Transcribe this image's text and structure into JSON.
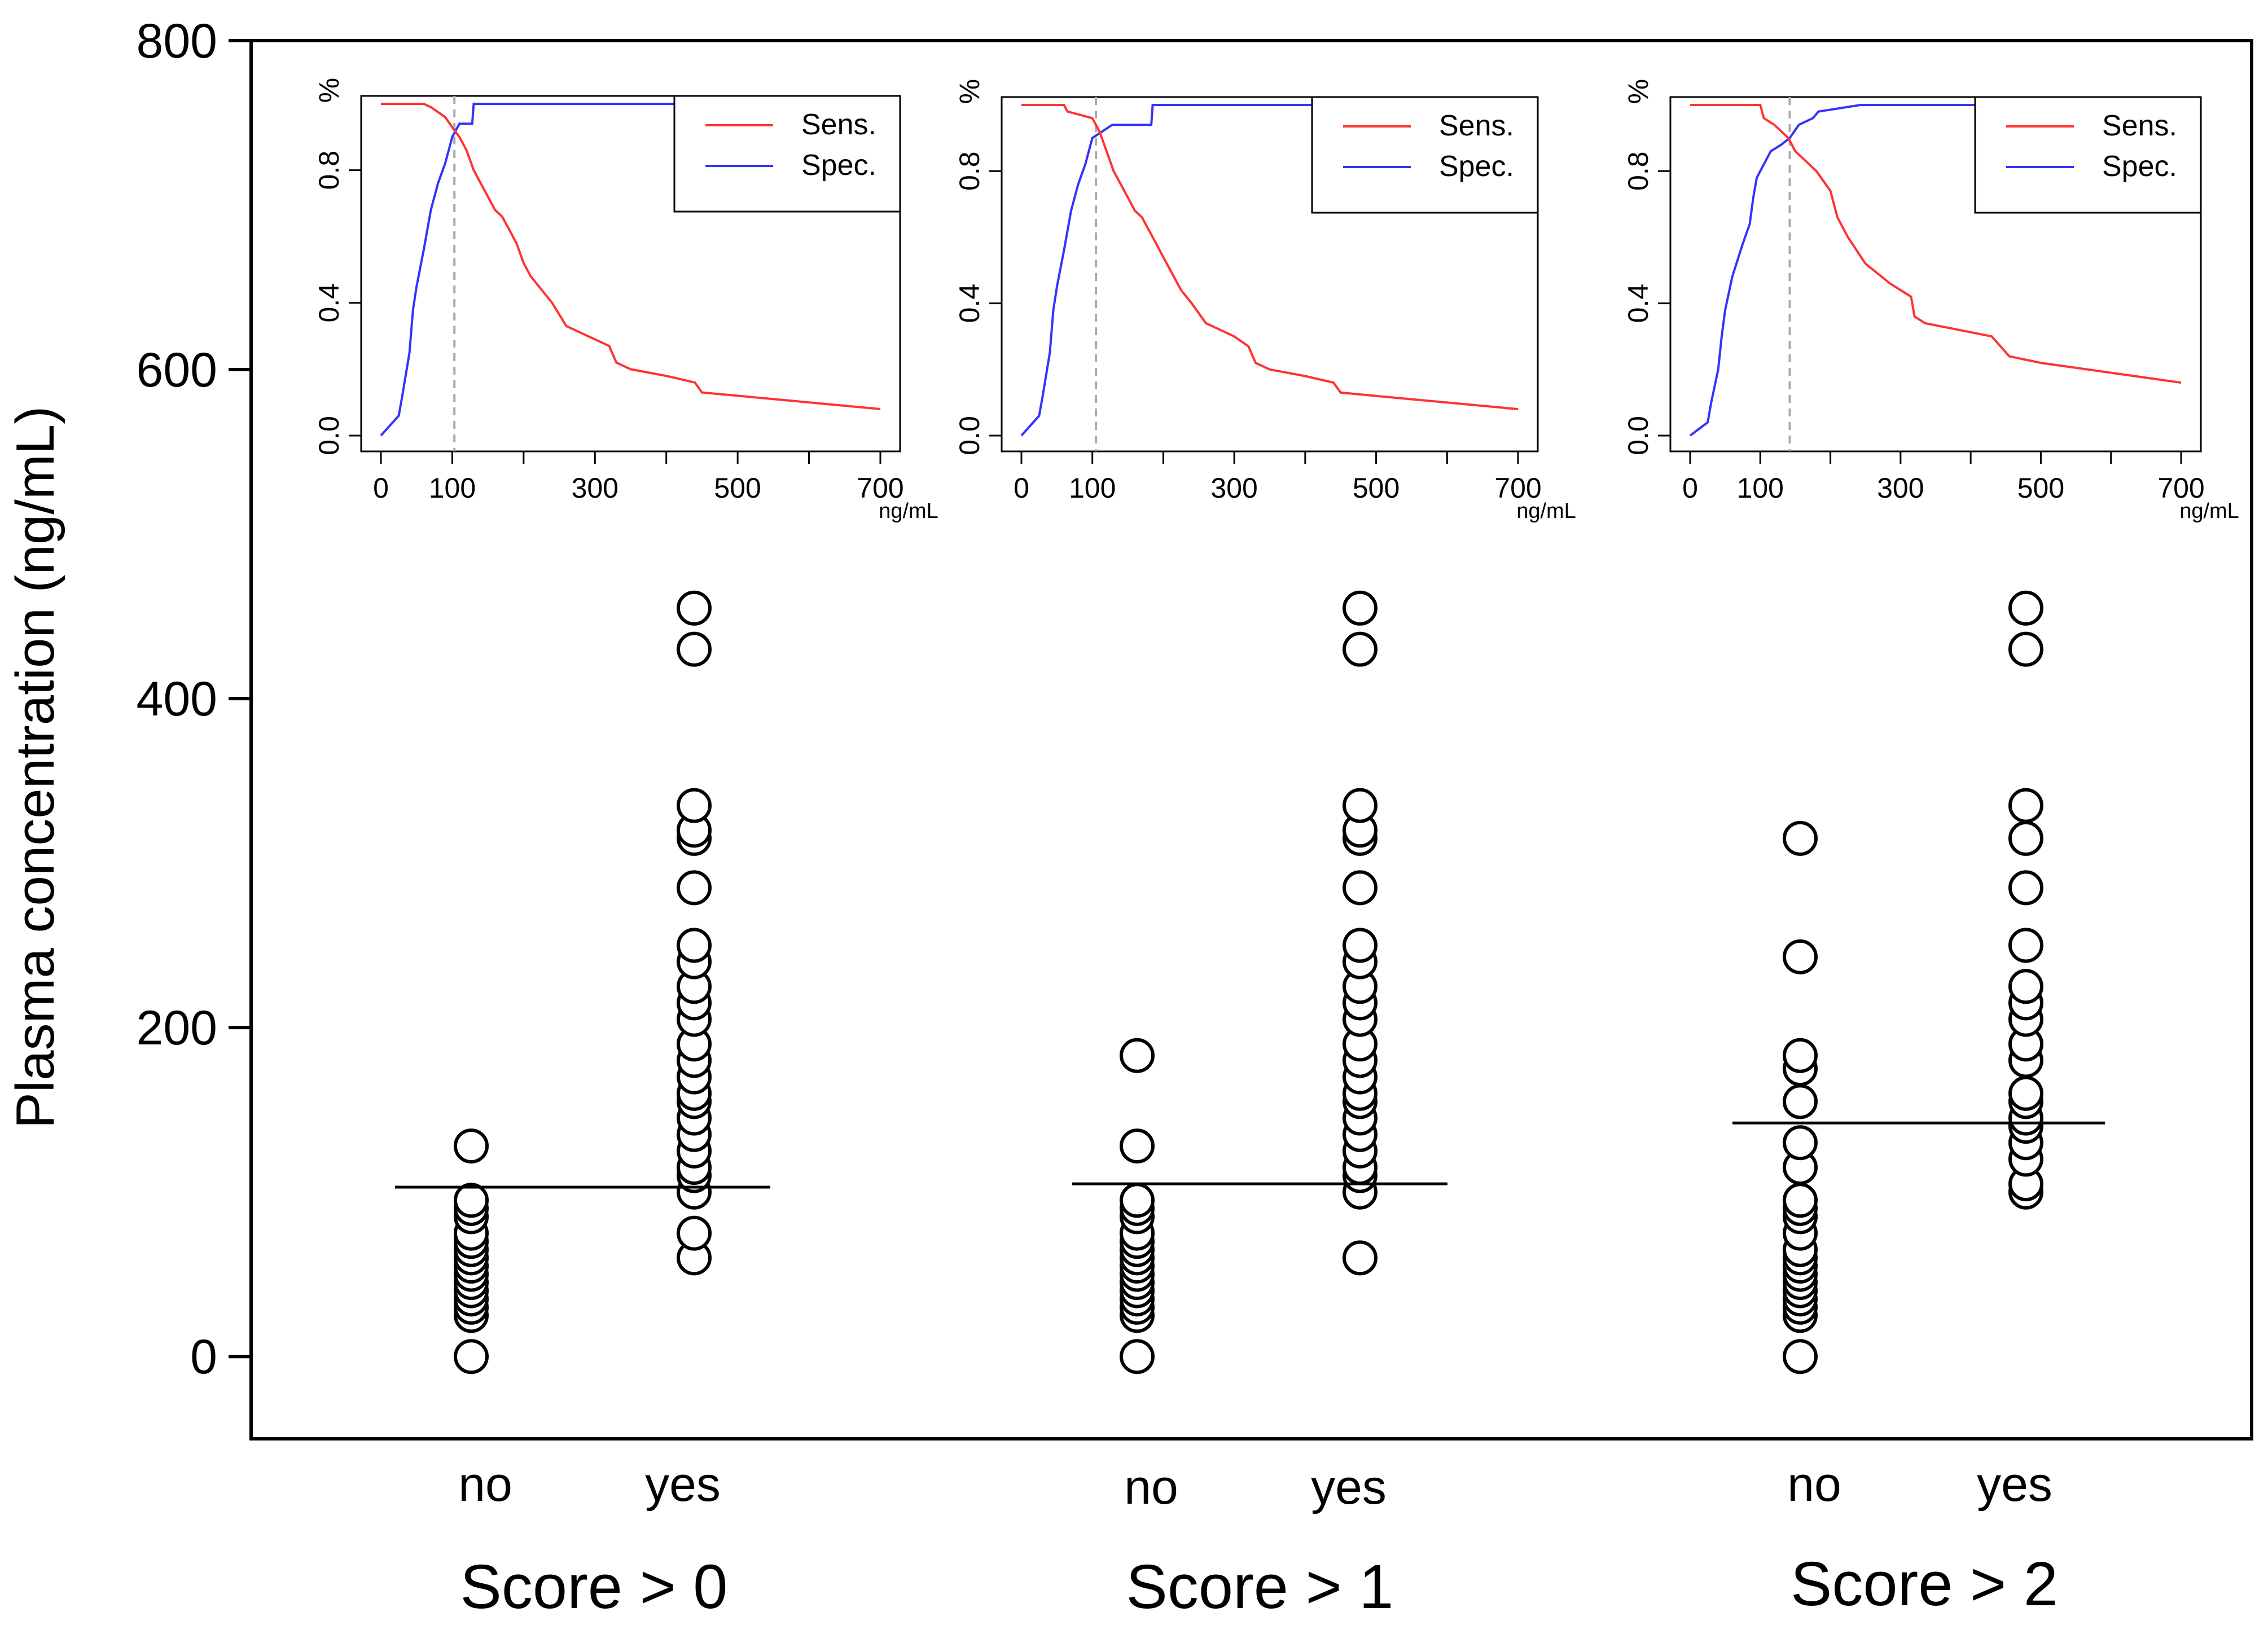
{
  "chart_data": {
    "type": "scatter",
    "ylabel": "Plasma concentration (ng/mL)",
    "ylim": [
      -50,
      800
    ],
    "yticks": [
      0,
      200,
      400,
      600,
      800
    ],
    "groups": [
      {
        "label": "Score > 0",
        "categories": [
          "no",
          "yes"
        ],
        "cutoff": 103,
        "no": [
          0,
          25,
          30,
          35,
          40,
          45,
          50,
          55,
          60,
          65,
          70,
          75,
          85,
          90,
          95,
          128
        ],
        "yes": [
          60,
          75,
          100,
          110,
          115,
          125,
          135,
          145,
          155,
          160,
          170,
          180,
          190,
          205,
          215,
          225,
          240,
          250,
          285,
          315,
          320,
          335,
          430,
          455
        ]
      },
      {
        "label": "Score > 1",
        "categories": [
          "no",
          "yes"
        ],
        "cutoff": 105,
        "no": [
          0,
          25,
          30,
          35,
          40,
          45,
          50,
          55,
          60,
          65,
          70,
          75,
          85,
          90,
          95,
          128,
          183
        ],
        "yes": [
          60,
          100,
          110,
          115,
          125,
          135,
          145,
          155,
          160,
          170,
          180,
          190,
          205,
          215,
          225,
          240,
          250,
          285,
          315,
          320,
          335,
          430,
          455
        ]
      },
      {
        "label": "Score > 2",
        "categories": [
          "no",
          "yes"
        ],
        "cutoff": 142,
        "no": [
          0,
          25,
          30,
          35,
          40,
          45,
          50,
          55,
          60,
          65,
          75,
          85,
          90,
          95,
          115,
          130,
          155,
          175,
          183,
          243,
          315
        ],
        "yes": [
          100,
          105,
          120,
          130,
          140,
          145,
          155,
          160,
          180,
          190,
          205,
          215,
          225,
          250,
          285,
          315,
          335,
          430,
          455
        ]
      }
    ],
    "insets": {
      "xlabel": "ng/mL",
      "ylabel": "%",
      "xlim": [
        0,
        700
      ],
      "xticks": [
        0,
        100,
        300,
        500,
        700
      ],
      "yticks": [
        0.0,
        0.4,
        0.8
      ],
      "ytick_labels": [
        "0.0",
        "0.4",
        "0.8"
      ],
      "xticks_minor": [
        200,
        400,
        600
      ],
      "legend": [
        "Sens.",
        "Spec."
      ],
      "colors": {
        "sens": "#ff3333",
        "spec": "#3333ff"
      },
      "panels": [
        {
          "cutoff": 103,
          "sens": [
            [
              0,
              1
            ],
            [
              60,
              1
            ],
            [
              70,
              0.99
            ],
            [
              90,
              0.96
            ],
            [
              103,
              0.92
            ],
            [
              110,
              0.9
            ],
            [
              120,
              0.86
            ],
            [
              130,
              0.8
            ],
            [
              140,
              0.76
            ],
            [
              150,
              0.72
            ],
            [
              160,
              0.68
            ],
            [
              170,
              0.66
            ],
            [
              180,
              0.62
            ],
            [
              190,
              0.58
            ],
            [
              200,
              0.52
            ],
            [
              210,
              0.48
            ],
            [
              225,
              0.44
            ],
            [
              240,
              0.4
            ],
            [
              260,
              0.33
            ],
            [
              290,
              0.3
            ],
            [
              320,
              0.27
            ],
            [
              330,
              0.22
            ],
            [
              350,
              0.2
            ],
            [
              400,
              0.18
            ],
            [
              440,
              0.16
            ],
            [
              450,
              0.13
            ],
            [
              500,
              0.12
            ],
            [
              700,
              0.08
            ]
          ],
          "spec": [
            [
              0,
              0
            ],
            [
              25,
              0.06
            ],
            [
              30,
              0.12
            ],
            [
              40,
              0.25
            ],
            [
              45,
              0.38
            ],
            [
              50,
              0.45
            ],
            [
              60,
              0.56
            ],
            [
              70,
              0.68
            ],
            [
              80,
              0.76
            ],
            [
              90,
              0.82
            ],
            [
              100,
              0.9
            ],
            [
              110,
              0.94
            ],
            [
              128,
              0.94
            ],
            [
              130,
              1
            ],
            [
              700,
              1
            ]
          ]
        },
        {
          "cutoff": 105,
          "sens": [
            [
              0,
              1
            ],
            [
              60,
              1
            ],
            [
              65,
              0.98
            ],
            [
              100,
              0.96
            ],
            [
              110,
              0.92
            ],
            [
              120,
              0.86
            ],
            [
              130,
              0.8
            ],
            [
              140,
              0.76
            ],
            [
              150,
              0.72
            ],
            [
              160,
              0.68
            ],
            [
              170,
              0.66
            ],
            [
              180,
              0.62
            ],
            [
              190,
              0.58
            ],
            [
              200,
              0.54
            ],
            [
              210,
              0.5
            ],
            [
              225,
              0.44
            ],
            [
              240,
              0.4
            ],
            [
              260,
              0.34
            ],
            [
              300,
              0.3
            ],
            [
              320,
              0.27
            ],
            [
              330,
              0.22
            ],
            [
              350,
              0.2
            ],
            [
              400,
              0.18
            ],
            [
              440,
              0.16
            ],
            [
              450,
              0.13
            ],
            [
              500,
              0.12
            ],
            [
              700,
              0.08
            ]
          ],
          "spec": [
            [
              0,
              0
            ],
            [
              25,
              0.06
            ],
            [
              30,
              0.12
            ],
            [
              40,
              0.25
            ],
            [
              45,
              0.38
            ],
            [
              50,
              0.45
            ],
            [
              60,
              0.56
            ],
            [
              70,
              0.68
            ],
            [
              80,
              0.76
            ],
            [
              90,
              0.82
            ],
            [
              100,
              0.9
            ],
            [
              128,
              0.94
            ],
            [
              183,
              0.94
            ],
            [
              185,
              1
            ],
            [
              700,
              1
            ]
          ]
        },
        {
          "cutoff": 142,
          "sens": [
            [
              0,
              1
            ],
            [
              100,
              1
            ],
            [
              105,
              0.96
            ],
            [
              120,
              0.94
            ],
            [
              140,
              0.9
            ],
            [
              150,
              0.86
            ],
            [
              160,
              0.84
            ],
            [
              180,
              0.8
            ],
            [
              200,
              0.74
            ],
            [
              210,
              0.66
            ],
            [
              225,
              0.6
            ],
            [
              250,
              0.52
            ],
            [
              285,
              0.46
            ],
            [
              315,
              0.42
            ],
            [
              320,
              0.36
            ],
            [
              335,
              0.34
            ],
            [
              430,
              0.3
            ],
            [
              455,
              0.24
            ],
            [
              500,
              0.22
            ],
            [
              700,
              0.16
            ]
          ],
          "spec": [
            [
              0,
              0
            ],
            [
              25,
              0.04
            ],
            [
              30,
              0.1
            ],
            [
              40,
              0.2
            ],
            [
              45,
              0.3
            ],
            [
              50,
              0.38
            ],
            [
              60,
              0.48
            ],
            [
              75,
              0.58
            ],
            [
              85,
              0.64
            ],
            [
              90,
              0.72
            ],
            [
              95,
              0.78
            ],
            [
              115,
              0.86
            ],
            [
              130,
              0.88
            ],
            [
              142,
              0.9
            ],
            [
              155,
              0.94
            ],
            [
              175,
              0.96
            ],
            [
              183,
              0.98
            ],
            [
              243,
              1
            ],
            [
              700,
              1
            ]
          ]
        }
      ]
    }
  }
}
